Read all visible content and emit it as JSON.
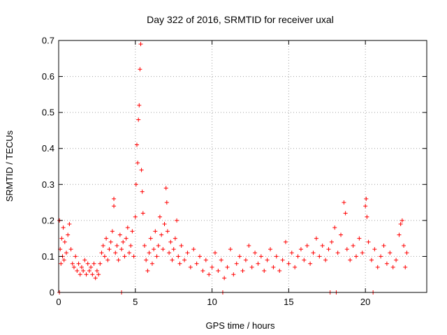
{
  "chart_data": {
    "type": "scatter",
    "title": "Day 322 of 2016, SRMTID for receiver uxal",
    "xlabel": "GPS time / hours",
    "ylabel": "SRMTID / TECUs",
    "xlim": [
      0,
      24
    ],
    "ylim": [
      0,
      0.7
    ],
    "x_ticks": [
      0,
      5,
      10,
      15,
      20
    ],
    "x_tick_labels": [
      "0",
      "5",
      "10",
      "15",
      "20"
    ],
    "y_ticks": [
      0,
      0.1,
      0.2,
      0.3,
      0.4,
      0.5,
      0.6,
      0.7
    ],
    "y_tick_labels": [
      "0",
      "0.1",
      "0.2",
      "0.3",
      "0.4",
      "0.5",
      "0.6",
      "0.7"
    ],
    "grid": true,
    "marker": "+",
    "series_color": "#ff0000",
    "series": [
      {
        "name": "SRMTID",
        "points": [
          [
            0.05,
            0.2
          ],
          [
            0.1,
            0.12
          ],
          [
            0.15,
            0.08
          ],
          [
            0.2,
            0.15
          ],
          [
            0.25,
            0.1
          ],
          [
            0.3,
            0.18
          ],
          [
            0.35,
            0.09
          ],
          [
            0.4,
            0.14
          ],
          [
            0.5,
            0.11
          ],
          [
            0.6,
            0.16
          ],
          [
            0.7,
            0.19
          ],
          [
            0.8,
            0.12
          ],
          [
            0.9,
            0.08
          ],
          [
            1.0,
            0.07
          ],
          [
            1.1,
            0.1
          ],
          [
            1.2,
            0.06
          ],
          [
            1.3,
            0.08
          ],
          [
            1.4,
            0.05
          ],
          [
            1.5,
            0.07
          ],
          [
            1.6,
            0.06
          ],
          [
            1.7,
            0.09
          ],
          [
            1.8,
            0.05
          ],
          [
            1.9,
            0.08
          ],
          [
            2.0,
            0.06
          ],
          [
            2.1,
            0.07
          ],
          [
            2.2,
            0.05
          ],
          [
            2.3,
            0.08
          ],
          [
            2.4,
            0.04
          ],
          [
            2.5,
            0.06
          ],
          [
            2.6,
            0.05
          ],
          [
            2.7,
            0.08
          ],
          [
            2.8,
            0.11
          ],
          [
            2.9,
            0.13
          ],
          [
            3.0,
            0.1
          ],
          [
            3.1,
            0.15
          ],
          [
            3.2,
            0.09
          ],
          [
            3.3,
            0.12
          ],
          [
            3.4,
            0.14
          ],
          [
            3.5,
            0.17
          ],
          [
            3.6,
            0.26
          ],
          [
            3.6,
            0.24
          ],
          [
            3.7,
            0.11
          ],
          [
            3.8,
            0.13
          ],
          [
            3.9,
            0.09
          ],
          [
            4.0,
            0.16
          ],
          [
            4.1,
            0.12
          ],
          [
            4.2,
            0.14
          ],
          [
            4.3,
            0.1
          ],
          [
            4.4,
            0.15
          ],
          [
            4.5,
            0.18
          ],
          [
            4.6,
            0.11
          ],
          [
            4.7,
            0.13
          ],
          [
            4.8,
            0.17
          ],
          [
            4.9,
            0.1
          ],
          [
            5.0,
            0.21
          ],
          [
            5.05,
            0.3
          ],
          [
            5.1,
            0.41
          ],
          [
            5.15,
            0.36
          ],
          [
            5.2,
            0.48
          ],
          [
            5.25,
            0.52
          ],
          [
            5.3,
            0.62
          ],
          [
            5.35,
            0.69
          ],
          [
            5.4,
            0.34
          ],
          [
            5.45,
            0.28
          ],
          [
            5.5,
            0.22
          ],
          [
            5.6,
            0.13
          ],
          [
            5.7,
            0.09
          ],
          [
            5.8,
            0.06
          ],
          [
            5.9,
            0.11
          ],
          [
            6.0,
            0.15
          ],
          [
            6.1,
            0.08
          ],
          [
            6.2,
            0.12
          ],
          [
            6.3,
            0.17
          ],
          [
            6.4,
            0.1
          ],
          [
            6.5,
            0.13
          ],
          [
            6.6,
            0.21
          ],
          [
            6.7,
            0.16
          ],
          [
            6.8,
            0.12
          ],
          [
            6.9,
            0.19
          ],
          [
            7.0,
            0.29
          ],
          [
            7.05,
            0.25
          ],
          [
            7.1,
            0.17
          ],
          [
            7.2,
            0.11
          ],
          [
            7.3,
            0.14
          ],
          [
            7.4,
            0.09
          ],
          [
            7.5,
            0.12
          ],
          [
            7.6,
            0.15
          ],
          [
            7.7,
            0.2
          ],
          [
            7.8,
            0.1
          ],
          [
            7.9,
            0.08
          ],
          [
            8.0,
            0.13
          ],
          [
            8.2,
            0.09
          ],
          [
            8.4,
            0.11
          ],
          [
            8.6,
            0.07
          ],
          [
            8.8,
            0.12
          ],
          [
            9.0,
            0.08
          ],
          [
            9.2,
            0.1
          ],
          [
            9.4,
            0.06
          ],
          [
            9.6,
            0.09
          ],
          [
            9.8,
            0.05
          ],
          [
            10.0,
            0.07
          ],
          [
            10.2,
            0.11
          ],
          [
            10.4,
            0.06
          ],
          [
            10.6,
            0.09
          ],
          [
            10.8,
            0.04
          ],
          [
            11.0,
            0.07
          ],
          [
            11.2,
            0.12
          ],
          [
            11.4,
            0.05
          ],
          [
            11.6,
            0.08
          ],
          [
            11.8,
            0.1
          ],
          [
            12.0,
            0.06
          ],
          [
            12.2,
            0.09
          ],
          [
            12.4,
            0.13
          ],
          [
            12.6,
            0.07
          ],
          [
            12.8,
            0.11
          ],
          [
            13.0,
            0.08
          ],
          [
            13.2,
            0.1
          ],
          [
            13.4,
            0.06
          ],
          [
            13.6,
            0.09
          ],
          [
            13.8,
            0.12
          ],
          [
            14.0,
            0.07
          ],
          [
            14.2,
            0.1
          ],
          [
            14.4,
            0.06
          ],
          [
            14.6,
            0.09
          ],
          [
            14.8,
            0.14
          ],
          [
            15.0,
            0.08
          ],
          [
            15.2,
            0.11
          ],
          [
            15.4,
            0.07
          ],
          [
            15.6,
            0.1
          ],
          [
            15.8,
            0.12
          ],
          [
            16.0,
            0.09
          ],
          [
            16.2,
            0.13
          ],
          [
            16.4,
            0.08
          ],
          [
            16.6,
            0.11
          ],
          [
            16.8,
            0.15
          ],
          [
            17.0,
            0.1
          ],
          [
            17.2,
            0.13
          ],
          [
            17.4,
            0.09
          ],
          [
            17.6,
            0.12
          ],
          [
            17.8,
            0.14
          ],
          [
            18.0,
            0.18
          ],
          [
            18.2,
            0.11
          ],
          [
            18.4,
            0.16
          ],
          [
            18.6,
            0.25
          ],
          [
            18.7,
            0.22
          ],
          [
            18.8,
            0.12
          ],
          [
            19.0,
            0.09
          ],
          [
            19.2,
            0.13
          ],
          [
            19.4,
            0.1
          ],
          [
            19.6,
            0.15
          ],
          [
            19.8,
            0.11
          ],
          [
            20.0,
            0.24
          ],
          [
            20.05,
            0.26
          ],
          [
            20.1,
            0.21
          ],
          [
            20.2,
            0.14
          ],
          [
            20.4,
            0.09
          ],
          [
            20.6,
            0.12
          ],
          [
            20.8,
            0.07
          ],
          [
            21.0,
            0.1
          ],
          [
            21.2,
            0.13
          ],
          [
            21.4,
            0.08
          ],
          [
            21.6,
            0.11
          ],
          [
            21.8,
            0.07
          ],
          [
            22.0,
            0.09
          ],
          [
            22.2,
            0.16
          ],
          [
            22.3,
            0.19
          ],
          [
            22.4,
            0.2
          ],
          [
            22.5,
            0.13
          ],
          [
            22.6,
            0.07
          ],
          [
            22.7,
            0.11
          ],
          [
            0.05,
            0.0
          ],
          [
            4.1,
            0.0
          ],
          [
            10.7,
            0.0
          ],
          [
            17.7,
            0.0
          ],
          [
            18.1,
            0.0
          ],
          [
            20.5,
            0.0
          ]
        ]
      }
    ]
  }
}
